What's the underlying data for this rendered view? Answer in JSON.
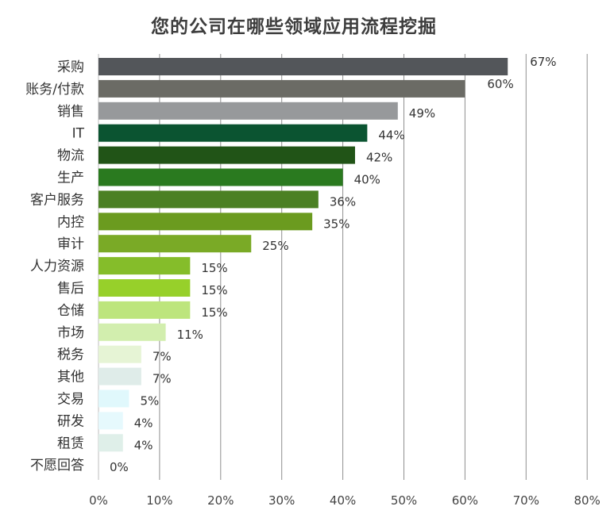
{
  "chart_data": {
    "type": "bar",
    "orientation": "horizontal",
    "title": "您的公司在哪些领域应用流程挖掘",
    "categories": [
      "采购",
      "账务/付款",
      "销售",
      "IT",
      "物流",
      "生产",
      "客户服务",
      "内控",
      "审计",
      "人力资源",
      "售后",
      "仓储",
      "市场",
      "税务",
      "其他",
      "交易",
      "研发",
      "租赁",
      "不愿回答"
    ],
    "values": [
      67,
      60,
      49,
      44,
      42,
      40,
      36,
      35,
      25,
      15,
      15,
      15,
      11,
      7,
      7,
      5,
      4,
      4,
      0
    ],
    "value_labels": [
      "67%",
      "60%",
      "49%",
      "44%",
      "42%",
      "40%",
      "36%",
      "35%",
      "25%",
      "15%",
      "15%",
      "15%",
      "11%",
      "7%",
      "7%",
      "5%",
      "4%",
      "4%",
      "0%"
    ],
    "bar_colors": [
      "#53565a",
      "#6b6b65",
      "#97999b",
      "#0b5431",
      "#215417",
      "#2a7a1f",
      "#4b8023",
      "#6b9b1f",
      "#7aaa26",
      "#85bd2a",
      "#97d02a",
      "#bde57d",
      "#d2eeae",
      "#e6f4d5",
      "#dfece9",
      "#e0f8fc",
      "#e6f9fd",
      "#dfefe9",
      "#ffffff"
    ],
    "xlim": [
      0,
      80
    ],
    "x_ticks": [
      "0%",
      "10%",
      "20%",
      "30%",
      "40%",
      "50%",
      "60%",
      "70%",
      "80%"
    ],
    "grid": true,
    "legend": "none"
  }
}
